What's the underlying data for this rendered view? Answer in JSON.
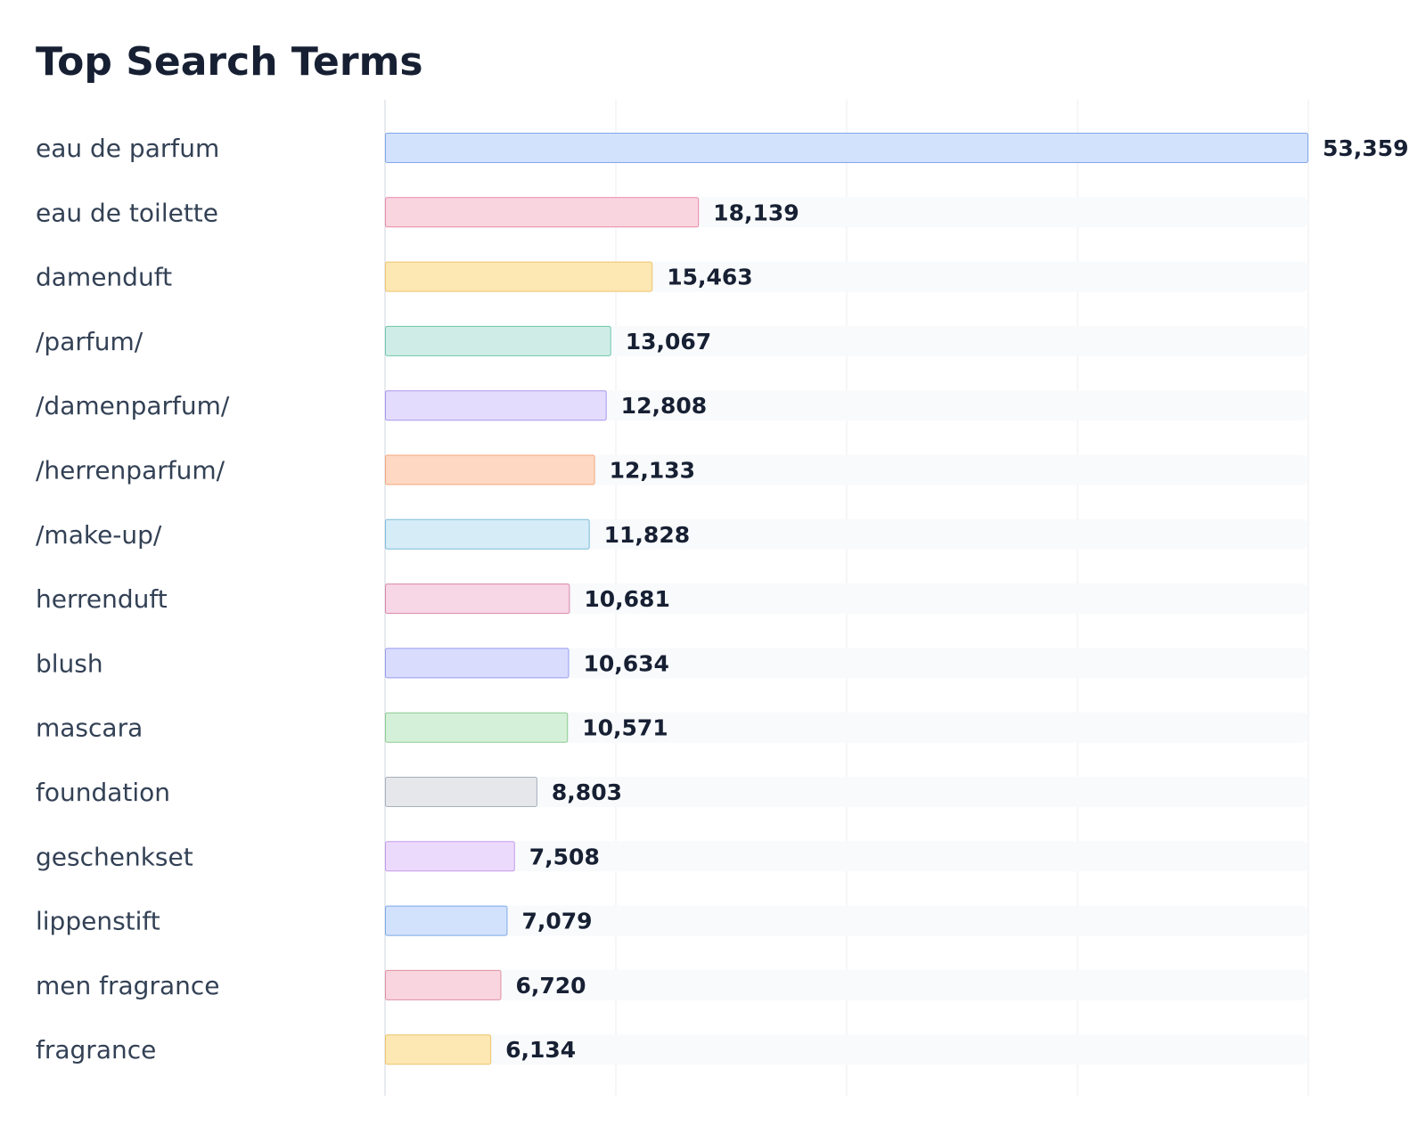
{
  "chart_data": {
    "type": "bar",
    "orientation": "horizontal",
    "title": "Top Search Terms",
    "xlabel": "",
    "ylabel": "",
    "xlim": [
      0,
      53359
    ],
    "grid": true,
    "legend": "none",
    "categories": [
      "eau de parfum",
      "eau de toilette",
      "damenduft",
      "/parfum/",
      "/damenparfum/",
      "/herrenparfum/",
      "/make-up/",
      "herrenduft",
      "blush",
      "mascara",
      "foundation",
      "geschenkset",
      "lippenstift",
      "men fragrance",
      "fragrance"
    ],
    "values": [
      53359,
      18139,
      15463,
      13067,
      12808,
      12133,
      11828,
      10681,
      10634,
      10571,
      8803,
      7508,
      7079,
      6720,
      6134
    ],
    "value_labels": [
      "53,359",
      "18,139",
      "15,463",
      "13,067",
      "12,808",
      "12,133",
      "11,828",
      "10,681",
      "10,634",
      "10,571",
      "8,803",
      "7,508",
      "7,079",
      "6,720",
      "6,134"
    ],
    "bar_colors": [
      {
        "fill": "#d2e1fc",
        "stroke": "#80a8ea"
      },
      {
        "fill": "#f9d5e0",
        "stroke": "#e98aa8"
      },
      {
        "fill": "#fde7b2",
        "stroke": "#edc56e"
      },
      {
        "fill": "#cfede6",
        "stroke": "#6ec6aa"
      },
      {
        "fill": "#e4dcfd",
        "stroke": "#a997ee"
      },
      {
        "fill": "#fed8c3",
        "stroke": "#f0a87e"
      },
      {
        "fill": "#d6ecf7",
        "stroke": "#7dbcd9"
      },
      {
        "fill": "#f7d6e6",
        "stroke": "#d989a9"
      },
      {
        "fill": "#dadcfe",
        "stroke": "#959cee"
      },
      {
        "fill": "#d5f0d8",
        "stroke": "#8ccb93"
      },
      {
        "fill": "#e5e7eb",
        "stroke": "#a9b0bb"
      },
      {
        "fill": "#ecdafd",
        "stroke": "#c39ce9"
      },
      {
        "fill": "#d2e2fc",
        "stroke": "#7ea9e6"
      },
      {
        "fill": "#f9d6df",
        "stroke": "#e08fa3"
      },
      {
        "fill": "#fde7b3",
        "stroke": "#edc56e"
      }
    ],
    "track_color": "#f8fafc",
    "grid_color": "#eceef2",
    "axis_color": "#dfe3e8"
  }
}
